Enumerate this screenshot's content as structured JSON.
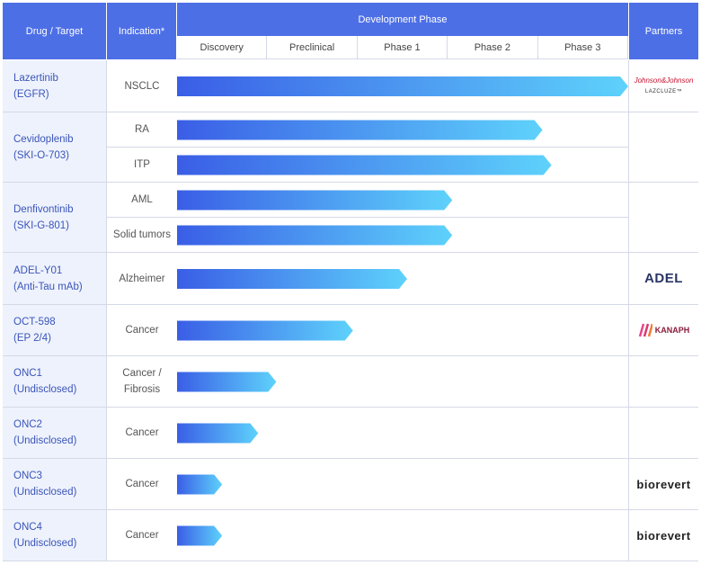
{
  "header": {
    "drug": "Drug / Target",
    "indication": "Indication*",
    "phase_group": "Development Phase",
    "partners": "Partners",
    "phases": [
      "Discovery",
      "Preclinical",
      "Phase 1",
      "Phase 2",
      "Phase 3"
    ]
  },
  "chart_data": {
    "type": "bar",
    "title": "",
    "xlabel": "Development Phase",
    "x_categories": [
      "Discovery",
      "Preclinical",
      "Phase 1",
      "Phase 2",
      "Phase 3"
    ],
    "xlim": [
      0,
      5
    ],
    "value_note": "progress in phase units (0 = start of Discovery, 5 = end of Phase 3)",
    "groups": [
      {
        "drug_line1": "Lazertinib",
        "drug_line2": "(EGFR)",
        "partner": "jnj",
        "partner_text": "Johnson&Johnson",
        "partner_sub": "LAZCLUZE™",
        "rows": [
          {
            "indication": "NSCLC",
            "value": 5.0
          }
        ]
      },
      {
        "drug_line1": "Cevidoplenib",
        "drug_line2": "(SKI-O-703)",
        "partner": "",
        "rows": [
          {
            "indication": "RA",
            "value": 4.05
          },
          {
            "indication": "ITP",
            "value": 4.15
          }
        ]
      },
      {
        "drug_line1": "Denfivontinib",
        "drug_line2": "(SKI-G-801)",
        "partner": "",
        "rows": [
          {
            "indication": "AML",
            "value": 3.05
          },
          {
            "indication": "Solid tumors",
            "value": 3.05
          }
        ]
      },
      {
        "drug_line1": "ADEL-Y01",
        "drug_line2": "(Anti-Tau mAb)",
        "partner": "adel",
        "partner_text": "ADEL",
        "rows": [
          {
            "indication": "Alzheimer",
            "value": 2.55
          }
        ]
      },
      {
        "drug_line1": "OCT-598",
        "drug_line2": "(EP 2/4)",
        "partner": "kanaph",
        "partner_text": "KANAPH",
        "rows": [
          {
            "indication": "Cancer",
            "value": 1.95
          }
        ]
      },
      {
        "drug_line1": "ONC1",
        "drug_line2": "(Undisclosed)",
        "partner": "",
        "rows": [
          {
            "indication": "Cancer /",
            "indication2": "Fibrosis",
            "value": 1.1
          }
        ]
      },
      {
        "drug_line1": "ONC2",
        "drug_line2": "(Undisclosed)",
        "partner": "",
        "rows": [
          {
            "indication": "Cancer",
            "value": 0.9
          }
        ]
      },
      {
        "drug_line1": "ONC3",
        "drug_line2": "(Undisclosed)",
        "partner": "biorevert",
        "partner_text": "biorevert",
        "rows": [
          {
            "indication": "Cancer",
            "value": 0.5
          }
        ]
      },
      {
        "drug_line1": "ONC4",
        "drug_line2": "(Undisclosed)",
        "partner": "biorevert",
        "partner_text": "biorevert",
        "rows": [
          {
            "indication": "Cancer",
            "value": 0.5
          }
        ]
      }
    ]
  },
  "colors": {
    "header": "#4d6fe6",
    "bar_start": "#3a5ee6",
    "bar_end": "#5ed2fb",
    "drug_bg": "#eef2fd",
    "drug_text": "#3a55b8"
  }
}
